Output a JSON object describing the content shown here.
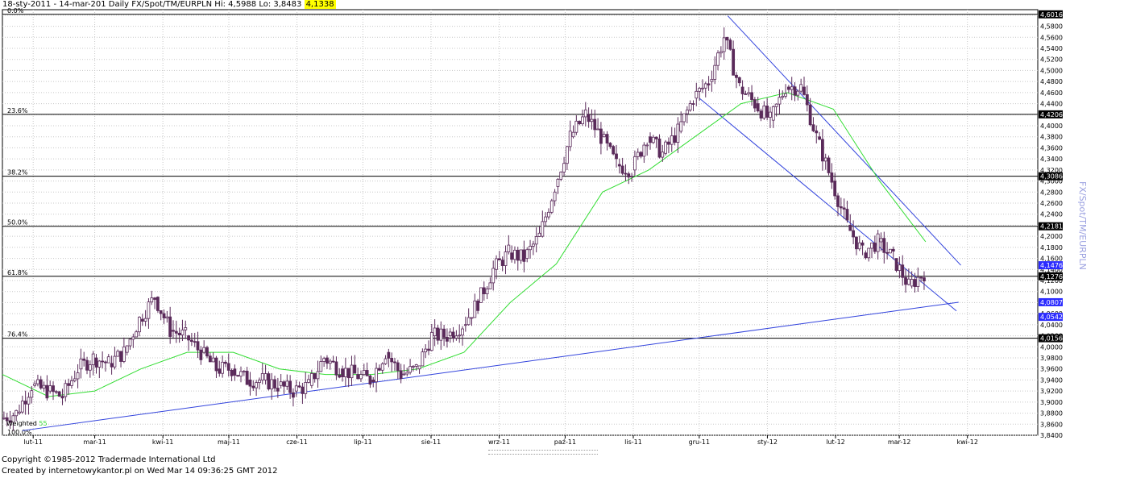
{
  "header": {
    "range": "18-sty-2011 - 14-mar-201",
    "description": "Daily FX/Spot/TM/EURPLN Hi: 4,5988 Lo: 3,8483",
    "last_value": "4,1338"
  },
  "side_title": "FX/Spot/TM/EURPLN",
  "footer": {
    "copyright": "Copyright ©1985-2012 Tradermade International Ltd",
    "created": "Created by internetowykantor.pl   on Wed Mar 14 09:36:25 GMT 2012"
  },
  "chart_data": {
    "type": "candlestick",
    "instrument": "FX/Spot/TM/EURPLN",
    "period": "Daily",
    "ylim": [
      3.84,
      4.61
    ],
    "y_ticks": [
      "3,8400",
      "3,8600",
      "3,8800",
      "3,9000",
      "3,9200",
      "3,9400",
      "3,9600",
      "3,9800",
      "4,0000",
      "4,0200",
      "4,0400",
      "4,0600",
      "4,0800",
      "4,1000",
      "4,1200",
      "4,1400",
      "4,1600",
      "4,1800",
      "4,2000",
      "4,2200",
      "4,2400",
      "4,2600",
      "4,2800",
      "4,3000",
      "4,3200",
      "4,3400",
      "4,3600",
      "4,3800",
      "4,4000",
      "4,4200",
      "4,4400",
      "4,4600",
      "4,4800",
      "4,5000",
      "4,5200",
      "4,5400",
      "4,5600",
      "4,5800",
      "4,6000"
    ],
    "x_labels": [
      "lut-11",
      "mar-11",
      "kwi-11",
      "maj-11",
      "cze-11",
      "lip-11",
      "sie-11",
      "wrz-11",
      "paź-11",
      "lis-11",
      "gru-11",
      "sty-12",
      "lut-12",
      "mar-12",
      "kwi-12"
    ],
    "fib_levels": [
      {
        "label": "0.0%",
        "value": 4.6016,
        "tag": "4,6016"
      },
      {
        "label": "23.6%",
        "value": 4.4206,
        "tag": "4,4206"
      },
      {
        "label": "38.2%",
        "value": 4.3086,
        "tag": "4,3086"
      },
      {
        "label": "50.0%",
        "value": 4.2181,
        "tag": "4,2181"
      },
      {
        "label": "61.8%",
        "value": 4.1276,
        "tag": "4,1276"
      },
      {
        "label": "76.4%",
        "value": 4.0156,
        "tag": "4,0156"
      },
      {
        "label": "100.0%",
        "value": 3.8346,
        "tag": ""
      }
    ],
    "price_tags": [
      {
        "value": 4.1476,
        "text": "4,1476",
        "color": "#2b2bff"
      },
      {
        "value": 4.0807,
        "text": "4,0807",
        "color": "#2b2bff"
      },
      {
        "value": 4.0542,
        "text": "4,0542",
        "color": "#2b2bff"
      }
    ],
    "trendlines": [
      {
        "x": [
          "2011-01-27",
          "2012-03-28"
        ],
        "y": [
          3.8483,
          4.0807
        ]
      },
      {
        "x": [
          "2011-12-14",
          "2012-03-29"
        ],
        "y": [
          4.5988,
          4.1476
        ]
      },
      {
        "x": [
          "2011-12-01",
          "2012-03-27"
        ],
        "y": [
          4.45,
          4.065
        ]
      }
    ],
    "ma_label": "Weighted 55",
    "ma_period": 55,
    "close_series": [
      {
        "d": "2011-01-18",
        "c": 3.87
      },
      {
        "d": "2011-01-25",
        "c": 3.88
      },
      {
        "d": "2011-02-01",
        "c": 3.93
      },
      {
        "d": "2011-02-08",
        "c": 3.92
      },
      {
        "d": "2011-02-15",
        "c": 3.91
      },
      {
        "d": "2011-02-22",
        "c": 3.96
      },
      {
        "d": "2011-03-01",
        "c": 3.98
      },
      {
        "d": "2011-03-08",
        "c": 3.97
      },
      {
        "d": "2011-03-15",
        "c": 3.99
      },
      {
        "d": "2011-03-22",
        "c": 4.05
      },
      {
        "d": "2011-03-29",
        "c": 4.09
      },
      {
        "d": "2011-04-05",
        "c": 4.03
      },
      {
        "d": "2011-04-12",
        "c": 4.02
      },
      {
        "d": "2011-04-19",
        "c": 3.99
      },
      {
        "d": "2011-04-26",
        "c": 3.96
      },
      {
        "d": "2011-05-03",
        "c": 3.96
      },
      {
        "d": "2011-05-10",
        "c": 3.94
      },
      {
        "d": "2011-05-17",
        "c": 3.94
      },
      {
        "d": "2011-05-24",
        "c": 3.93
      },
      {
        "d": "2011-05-31",
        "c": 3.92
      },
      {
        "d": "2011-06-07",
        "c": 3.93
      },
      {
        "d": "2011-06-14",
        "c": 3.98
      },
      {
        "d": "2011-06-21",
        "c": 3.96
      },
      {
        "d": "2011-06-28",
        "c": 3.95
      },
      {
        "d": "2011-07-05",
        "c": 3.94
      },
      {
        "d": "2011-07-12",
        "c": 3.99
      },
      {
        "d": "2011-07-19",
        "c": 3.95
      },
      {
        "d": "2011-07-26",
        "c": 3.96
      },
      {
        "d": "2011-08-02",
        "c": 4.02
      },
      {
        "d": "2011-08-09",
        "c": 4.02
      },
      {
        "d": "2011-08-16",
        "c": 4.04
      },
      {
        "d": "2011-08-23",
        "c": 4.08
      },
      {
        "d": "2011-08-30",
        "c": 4.14
      },
      {
        "d": "2011-09-06",
        "c": 4.17
      },
      {
        "d": "2011-09-13",
        "c": 4.16
      },
      {
        "d": "2011-09-20",
        "c": 4.2
      },
      {
        "d": "2011-09-27",
        "c": 4.29
      },
      {
        "d": "2011-10-04",
        "c": 4.38
      },
      {
        "d": "2011-10-11",
        "c": 4.42
      },
      {
        "d": "2011-10-18",
        "c": 4.38
      },
      {
        "d": "2011-10-25",
        "c": 4.33
      },
      {
        "d": "2011-11-01",
        "c": 4.32
      },
      {
        "d": "2011-11-08",
        "c": 4.38
      },
      {
        "d": "2011-11-15",
        "c": 4.35
      },
      {
        "d": "2011-11-22",
        "c": 4.39
      },
      {
        "d": "2011-11-29",
        "c": 4.45
      },
      {
        "d": "2011-12-06",
        "c": 4.48
      },
      {
        "d": "2011-12-13",
        "c": 4.56
      },
      {
        "d": "2011-12-20",
        "c": 4.47
      },
      {
        "d": "2011-12-27",
        "c": 4.44
      },
      {
        "d": "2012-01-03",
        "c": 4.41
      },
      {
        "d": "2012-01-10",
        "c": 4.47
      },
      {
        "d": "2012-01-17",
        "c": 4.47
      },
      {
        "d": "2012-01-24",
        "c": 4.38
      },
      {
        "d": "2012-01-31",
        "c": 4.3
      },
      {
        "d": "2012-02-07",
        "c": 4.22
      },
      {
        "d": "2012-02-14",
        "c": 4.17
      },
      {
        "d": "2012-02-21",
        "c": 4.19
      },
      {
        "d": "2012-02-28",
        "c": 4.16
      },
      {
        "d": "2012-03-06",
        "c": 4.11
      },
      {
        "d": "2012-03-13",
        "c": 4.1338
      }
    ],
    "ma_series": [
      {
        "d": "2011-01-18",
        "v": 3.95
      },
      {
        "d": "2011-02-08",
        "v": 3.91
      },
      {
        "d": "2011-03-01",
        "v": 3.92
      },
      {
        "d": "2011-03-22",
        "v": 3.96
      },
      {
        "d": "2011-04-12",
        "v": 3.99
      },
      {
        "d": "2011-05-03",
        "v": 3.99
      },
      {
        "d": "2011-05-24",
        "v": 3.96
      },
      {
        "d": "2011-06-14",
        "v": 3.95
      },
      {
        "d": "2011-07-05",
        "v": 3.95
      },
      {
        "d": "2011-07-26",
        "v": 3.96
      },
      {
        "d": "2011-08-16",
        "v": 3.99
      },
      {
        "d": "2011-09-06",
        "v": 4.08
      },
      {
        "d": "2011-09-27",
        "v": 4.15
      },
      {
        "d": "2011-10-18",
        "v": 4.28
      },
      {
        "d": "2011-11-08",
        "v": 4.32
      },
      {
        "d": "2011-11-29",
        "v": 4.38
      },
      {
        "d": "2011-12-20",
        "v": 4.44
      },
      {
        "d": "2012-01-10",
        "v": 4.46
      },
      {
        "d": "2012-01-31",
        "v": 4.43
      },
      {
        "d": "2012-02-21",
        "v": 4.3
      },
      {
        "d": "2012-03-13",
        "v": 4.19
      }
    ],
    "colors": {
      "candle": "#5a2a5a",
      "ma": "#33dd33",
      "trendline": "#3344dd",
      "fib": "#000000",
      "grid": "#c8c8c8",
      "tag_blue": "#2b2bff"
    }
  }
}
